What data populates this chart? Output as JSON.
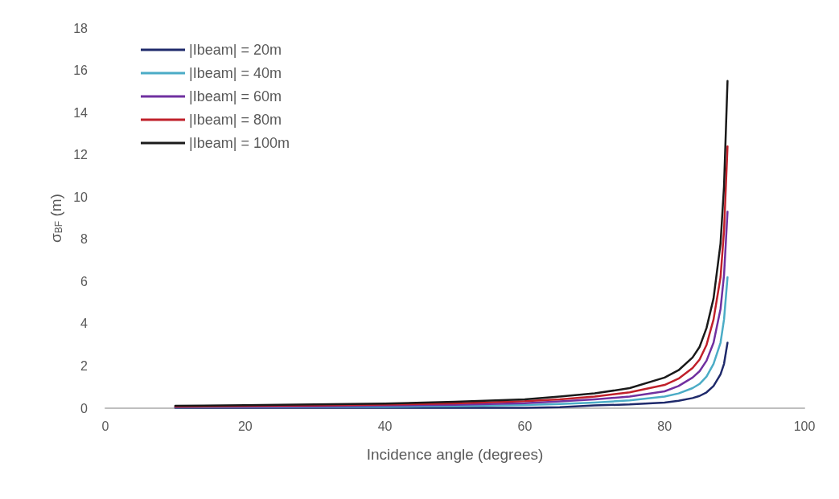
{
  "chart_data": {
    "type": "line",
    "xlabel": "Incidence angle (degrees)",
    "ylabel": "σ$_{BF}$ (m)",
    "xlim": [
      0,
      100
    ],
    "xticks": [
      0,
      20,
      40,
      60,
      80,
      100
    ],
    "ylim": [
      0,
      18
    ],
    "yticks": [
      0,
      2,
      4,
      6,
      8,
      10,
      12,
      14,
      16,
      18
    ],
    "grid": false,
    "legend": "top left",
    "marker": "none",
    "line_style": "solid",
    "x": [
      10,
      20,
      30,
      40,
      50,
      60,
      65,
      70,
      75,
      80,
      82,
      84,
      85,
      86,
      87,
      88,
      88.5,
      89
    ],
    "series": [
      {
        "name": "|Ibeam| = 20m",
        "color": "#1f2a6b",
        "values": [
          0.02,
          0.02,
          0.02,
          0.02,
          0.02,
          0.02,
          0.05,
          0.13,
          0.18,
          0.27,
          0.35,
          0.48,
          0.58,
          0.75,
          1.05,
          1.6,
          2.1,
          3.1
        ]
      },
      {
        "name": "|Ibeam| = 40m",
        "color": "#4bacc6",
        "values": [
          0.04,
          0.05,
          0.06,
          0.07,
          0.1,
          0.15,
          0.2,
          0.27,
          0.37,
          0.55,
          0.7,
          0.95,
          1.15,
          1.5,
          2.1,
          3.1,
          4.2,
          6.2
        ]
      },
      {
        "name": "|Ibeam| = 60m",
        "color": "#7030a0",
        "values": [
          0.06,
          0.07,
          0.09,
          0.12,
          0.16,
          0.24,
          0.32,
          0.42,
          0.55,
          0.8,
          1.05,
          1.45,
          1.75,
          2.25,
          3.1,
          4.7,
          6.3,
          9.3
        ]
      },
      {
        "name": "|Ibeam| = 80m",
        "color": "#c0202a",
        "values": [
          0.08,
          0.1,
          0.13,
          0.17,
          0.23,
          0.33,
          0.42,
          0.55,
          0.75,
          1.1,
          1.4,
          1.9,
          2.3,
          3.0,
          4.2,
          6.2,
          8.4,
          12.4
        ]
      },
      {
        "name": "|Ibeam| = 100m",
        "color": "#1a1a1a",
        "values": [
          0.11,
          0.14,
          0.18,
          0.22,
          0.3,
          0.42,
          0.55,
          0.7,
          0.95,
          1.45,
          1.8,
          2.4,
          2.9,
          3.8,
          5.2,
          7.8,
          10.5,
          15.5
        ]
      }
    ]
  }
}
